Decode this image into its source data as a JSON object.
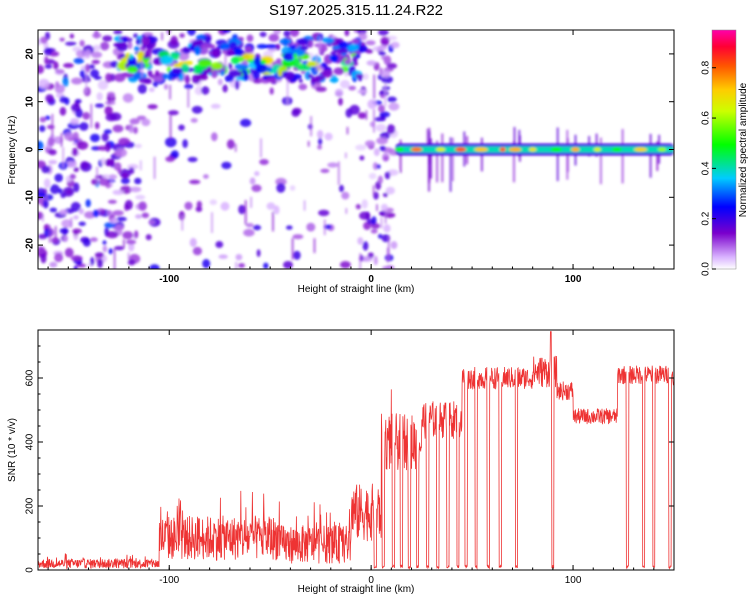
{
  "chart_data": [
    {
      "type": "heatmap",
      "title": "S197.2025.315.11.24.R22",
      "xlabel": "Height of straight line (km)",
      "ylabel": "Frequency (Hz)",
      "xlim": [
        -165,
        150
      ],
      "ylim": [
        -25,
        25
      ],
      "xticks": [
        -100,
        0,
        100
      ],
      "yticks": [
        -20,
        -10,
        0,
        10,
        20
      ],
      "colorbar": {
        "label": "Normalized spectral amplitude",
        "range": [
          0,
          0.95
        ],
        "ticks": [
          0.0,
          0.2,
          0.4,
          0.6,
          0.8
        ],
        "colors": [
          "#ffffff",
          "#cc99ff",
          "#7a00cc",
          "#0000ff",
          "#00ffff",
          "#00ff00",
          "#ffff00",
          "#ff8000",
          "#ff0000",
          "#ff00aa"
        ]
      },
      "features": [
        {
          "name": "upper-band",
          "x": [
            -125,
            -5
          ],
          "freq": 18,
          "amplitude": 0.45
        },
        {
          "name": "carrier-line",
          "x": [
            12,
            150
          ],
          "freq": 0,
          "amplitude": 0.6
        },
        {
          "name": "diffuse-noise",
          "x": [
            -165,
            12
          ],
          "freq": [
            -25,
            25
          ],
          "amplitude": 0.15
        }
      ]
    },
    {
      "type": "line",
      "xlabel": "Height of straight line (km)",
      "ylabel": "SNR (10 * v/v)",
      "xlim": [
        -165,
        150
      ],
      "ylim": [
        0,
        750
      ],
      "xticks": [
        -100,
        0,
        100
      ],
      "yticks": [
        0,
        200,
        400,
        600
      ],
      "color": "#ee3333",
      "segments": [
        {
          "x": [
            -165,
            -105
          ],
          "level": 20,
          "noise": 15
        },
        {
          "x": [
            -105,
            -45
          ],
          "level": 100,
          "noise": 70
        },
        {
          "x": [
            -45,
            -10
          ],
          "level": 80,
          "noise": 60
        },
        {
          "x": [
            -10,
            5
          ],
          "level": 180,
          "noise": 90
        },
        {
          "x": [
            5,
            25
          ],
          "level": 400,
          "noise": 90
        },
        {
          "x": [
            25,
            45
          ],
          "level": 470,
          "noise": 60
        },
        {
          "x": [
            45,
            80
          ],
          "level": 600,
          "noise": 35
        },
        {
          "x": [
            80,
            92
          ],
          "level": 620,
          "noise": 50
        },
        {
          "x": [
            92,
            100
          ],
          "level": 560,
          "noise": 30
        },
        {
          "x": [
            100,
            122
          ],
          "level": 480,
          "noise": 25
        },
        {
          "x": [
            122,
            150
          ],
          "level": 610,
          "noise": 30
        }
      ],
      "peak": {
        "x": 89,
        "y": 745
      },
      "dropouts": [
        2,
        6,
        11,
        15,
        19,
        23,
        28,
        33,
        38,
        43,
        47,
        52,
        58,
        64,
        72,
        90,
        127,
        135,
        140,
        148
      ]
    }
  ]
}
